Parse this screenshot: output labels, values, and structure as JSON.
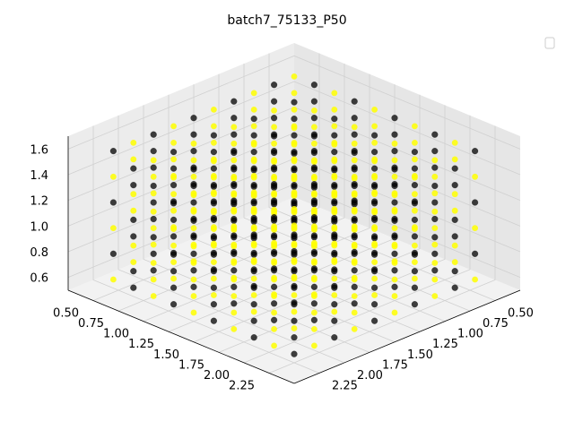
{
  "chart_data": {
    "type": "scatter",
    "projection": "3d",
    "view": {
      "elevation_deg": 30,
      "azimuth_deg": 45
    },
    "title": "batch7_75133_P50",
    "legend": {
      "placement": "top-right",
      "entries": []
    },
    "grid": true,
    "axes": {
      "x": {
        "label": "",
        "range": [
          0.25,
          2.5
        ],
        "ticks": [
          0.5,
          0.75,
          1.0,
          1.25,
          1.5,
          1.75,
          2.0,
          2.25
        ],
        "tick_labels": [
          "0.50",
          "0.75",
          "1.00",
          "1.25",
          "1.50",
          "1.75",
          "2.00",
          "2.25"
        ]
      },
      "y": {
        "label": "",
        "range": [
          0.25,
          2.5
        ],
        "ticks": [
          0.5,
          0.75,
          1.0,
          1.25,
          1.5,
          1.75,
          2.0,
          2.25
        ],
        "tick_labels": [
          "0.50",
          "0.75",
          "1.00",
          "1.25",
          "1.50",
          "1.75",
          "2.00",
          "2.25"
        ]
      },
      "z": {
        "label": "",
        "range": [
          0.5,
          1.7
        ],
        "ticks": [
          0.6,
          0.8,
          1.0,
          1.2,
          1.4,
          1.6
        ],
        "tick_labels": [
          "0.6",
          "0.8",
          "1.0",
          "1.2",
          "1.4",
          "1.6"
        ]
      }
    },
    "series": [
      {
        "color": "#000000",
        "marker": "circle",
        "lattice": {
          "x": [
            0.5,
            2.3,
            0.2
          ],
          "y": [
            0.5,
            2.3,
            0.2
          ],
          "z": [
            0.6,
            1.6,
            0.2
          ]
        },
        "selection": "every other lattice site, parity (i+j+k) even"
      },
      {
        "color": "#ffff00",
        "marker": "circle",
        "lattice": {
          "x": [
            0.5,
            2.3,
            0.2
          ],
          "y": [
            0.5,
            2.3,
            0.2
          ],
          "z": [
            0.6,
            1.6,
            0.2
          ]
        },
        "selection": "every other lattice site, parity (i+j+k) odd"
      }
    ]
  }
}
